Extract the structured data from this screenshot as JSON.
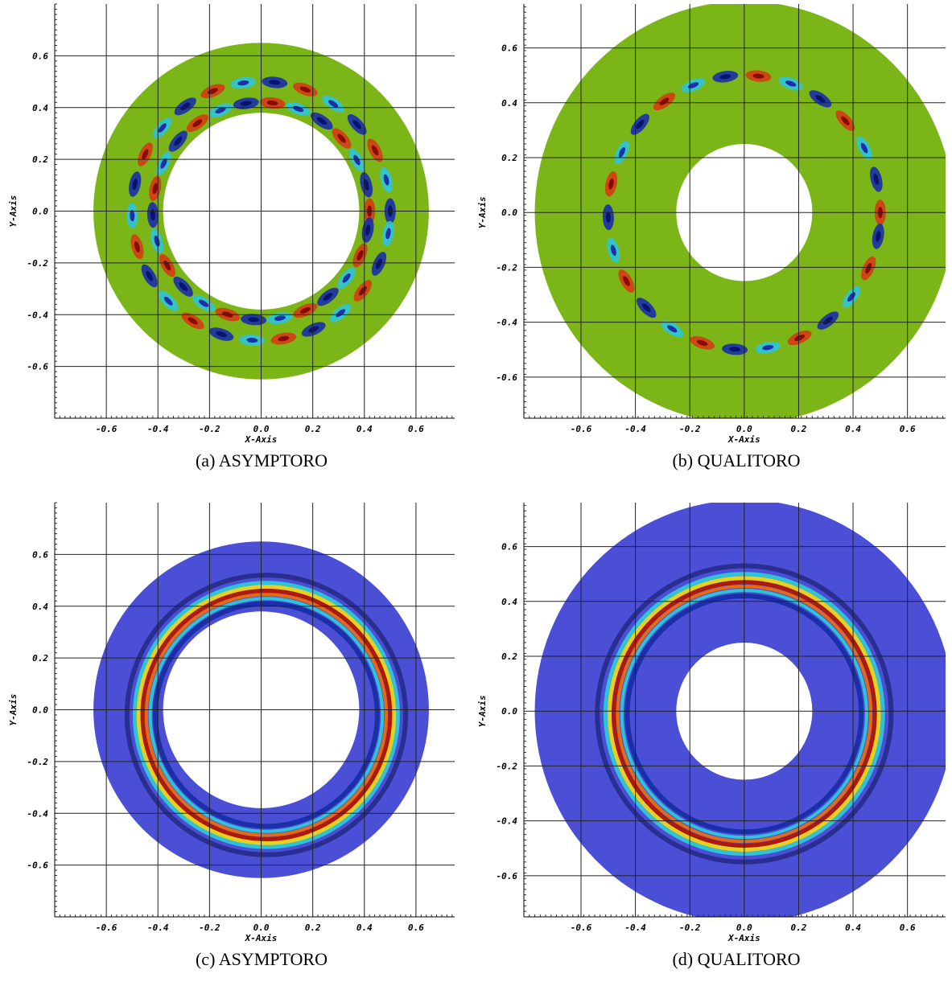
{
  "figure": {
    "panels": [
      {
        "caption": "(a) ASYMPTORO",
        "xlabel": "X-Axis",
        "ylabel": "Y-Axis",
        "xlim": [
          -0.8,
          0.75
        ],
        "ylim": [
          -0.8,
          0.8
        ],
        "xticks": [
          -0.6,
          -0.4,
          -0.2,
          {
            "value": 0,
            "label": "0.0"
          },
          0.2,
          0.4,
          0.6
        ],
        "yticks": [
          -0.6,
          -0.4,
          -0.2,
          {
            "value": 0,
            "label": "0.0"
          },
          0.2,
          0.4,
          0.6
        ],
        "outer_radius": 0.65,
        "inner_radius": 0.38,
        "background_color": "#7cb518",
        "style": "lobes"
      },
      {
        "caption": "(b) QUALITORO",
        "xlabel": "X-Axis",
        "ylabel": "Y-Axis",
        "xlim": [
          -0.81,
          0.74
        ],
        "ylim": [
          -0.75,
          0.76
        ],
        "xticks": [
          -0.6,
          -0.4,
          -0.2,
          {
            "value": 0,
            "label": "0.0"
          },
          0.2,
          0.4,
          0.6
        ],
        "yticks": [
          -0.6,
          -0.4,
          -0.2,
          {
            "value": 0,
            "label": "0.0"
          },
          0.2,
          0.4,
          0.6
        ],
        "outer_radius": 0.77,
        "inner_radius": 0.25,
        "background_color": "#7cb518",
        "style": "lobes"
      },
      {
        "caption": "(c) ASYMPTORO",
        "xlabel": "X-Axis",
        "ylabel": "Y-Axis",
        "xlim": [
          -0.8,
          0.75
        ],
        "ylim": [
          -0.8,
          0.8
        ],
        "xticks": [
          -0.6,
          -0.4,
          -0.2,
          {
            "value": 0,
            "label": "0.0"
          },
          0.2,
          0.4,
          0.6
        ],
        "yticks": [
          -0.6,
          -0.4,
          -0.2,
          {
            "value": 0,
            "label": "0.0"
          },
          0.2,
          0.4,
          0.6
        ],
        "outer_radius": 0.65,
        "inner_radius": 0.38,
        "background_color": "#4b4fd6",
        "style": "rings"
      },
      {
        "caption": "(d) QUALITORO",
        "xlabel": "X-Axis",
        "ylabel": "Y-Axis",
        "xlim": [
          -0.81,
          0.74
        ],
        "ylim": [
          -0.75,
          0.76
        ],
        "xticks": [
          -0.6,
          -0.4,
          -0.2,
          {
            "value": 0,
            "label": "0.0"
          },
          0.2,
          0.4,
          0.6
        ],
        "yticks": [
          -0.6,
          -0.4,
          -0.2,
          {
            "value": 0,
            "label": "0.0"
          },
          0.2,
          0.4,
          0.6
        ],
        "outer_radius": 0.77,
        "inner_radius": 0.25,
        "background_color": "#4b4fd6",
        "style": "rings"
      }
    ]
  }
}
